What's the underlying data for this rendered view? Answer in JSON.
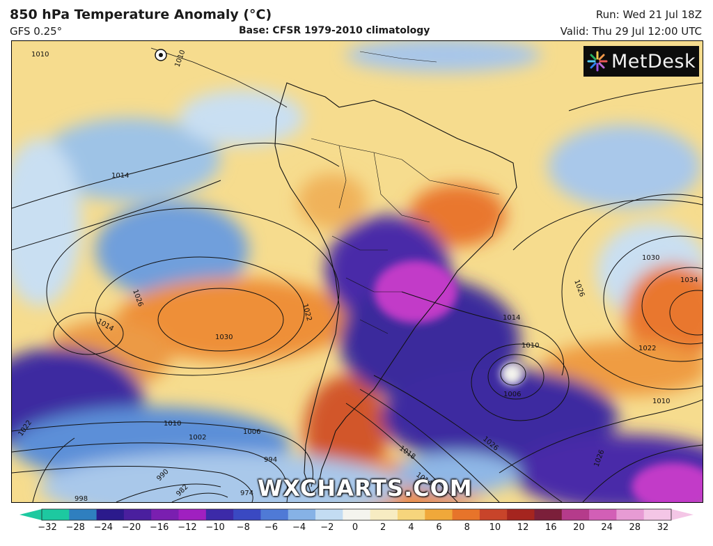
{
  "header": {
    "title": "850 hPa Temperature Anomaly (°C)",
    "model": "GFS 0.25°",
    "base": "Base: CFSR 1979-2010 climatology",
    "run": "Run: Wed 21 Jul 18Z",
    "valid": "Valid: Thu 29 Jul 12:00 UTC"
  },
  "logo": {
    "text": "MetDesk"
  },
  "watermark": "WXCHARTS.COM",
  "colorbar": {
    "ticks": [
      "−32",
      "−28",
      "−24",
      "−20",
      "−16",
      "−12",
      "−10",
      "−8",
      "−6",
      "−4",
      "−2",
      "0",
      "2",
      "4",
      "6",
      "8",
      "10",
      "12",
      "16",
      "20",
      "24",
      "28",
      "32"
    ],
    "colors": [
      "#1dc9a0",
      "#2f7fbf",
      "#2b1a8c",
      "#4a1f9e",
      "#7a1fb0",
      "#a020c0",
      "#3c2aa8",
      "#3a49c2",
      "#4f7ad6",
      "#86b2e6",
      "#c3dcf2",
      "#f4f4ee",
      "#f7ecc2",
      "#f6d57c",
      "#f0a83a",
      "#e7742a",
      "#c8442a",
      "#a5251f",
      "#7b1f3a",
      "#b53b8b",
      "#d25fb6",
      "#e79bd4",
      "#f4c6e6"
    ]
  },
  "isobar_labels": [
    "1010",
    "1010",
    "1014",
    "1026",
    "1022",
    "1030",
    "1014",
    "1030",
    "1034",
    "1026",
    "1022",
    "1014",
    "1010",
    "1006",
    "1010",
    "1022",
    "1010",
    "1002",
    "1006",
    "994",
    "990",
    "982",
    "974",
    "998",
    "1018",
    "1014",
    "1026",
    "1026"
  ],
  "colors": {
    "warm_anomaly": "#f0a83a",
    "strong_warm": "#c8442a",
    "cold_anomaly": "#3a49c2",
    "strong_cold": "#5b1a9c",
    "extreme_cold": "#c23ac8",
    "neutral": "#f4f4ee"
  }
}
